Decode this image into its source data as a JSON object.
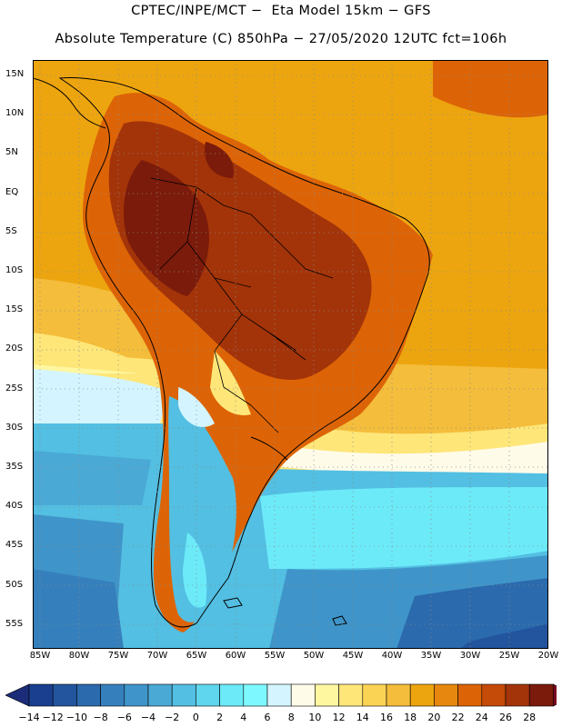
{
  "header": {
    "line1": "CPTEC/INPE/MCT −  Eta Model 15km − GFS",
    "line2": "Absolute Temperature (C) 850hPa − 27/05/2020 12UTC fct=106h"
  },
  "latitude_labels": [
    "15N",
    "10N",
    "5N",
    "EQ",
    "5S",
    "10S",
    "15S",
    "20S",
    "25S",
    "30S",
    "35S",
    "40S",
    "45S",
    "50S",
    "55S"
  ],
  "longitude_labels": [
    "85W",
    "80W",
    "75W",
    "70W",
    "65W",
    "60W",
    "55W",
    "50W",
    "45W",
    "40W",
    "35W",
    "30W",
    "25W",
    "20W"
  ],
  "colorbar": {
    "labels": [
      "−14",
      "−12",
      "−10",
      "−8",
      "−6",
      "−4",
      "−2",
      "0",
      "2",
      "4",
      "6",
      "8",
      "10",
      "12",
      "14",
      "16",
      "18",
      "20",
      "22",
      "24",
      "26",
      "28"
    ],
    "colors": [
      "#1b3f8f",
      "#22559d",
      "#2b6aad",
      "#3580bc",
      "#3f95c9",
      "#4aa9d5",
      "#53bfe2",
      "#5fd6ee",
      "#6ceaf8",
      "#7ef8ff",
      "#d4f5ff",
      "#fffbe9",
      "#fff7a0",
      "#fee679",
      "#fbd354",
      "#f4bd3b",
      "#eda50f",
      "#e8870f",
      "#dd6406",
      "#c54b08",
      "#a33409",
      "#7b1b0b"
    ],
    "low_arrow_color": "#1b2c78",
    "high_arrow_color": "#7a0b22"
  },
  "map_colors": {
    "ocean_tropical": "#eda50f",
    "ocean_subtropical": "#f4bd3b",
    "ocean_mid": "#fee679",
    "ocean_south": "#53bfe2",
    "ocean_far_south": "#3580bc",
    "land_hot": "#a33409",
    "land_warm": "#dd6406",
    "land_very_hot": "#7b1b0b",
    "coastline": "#000000",
    "grid": "#9a9a9a"
  }
}
